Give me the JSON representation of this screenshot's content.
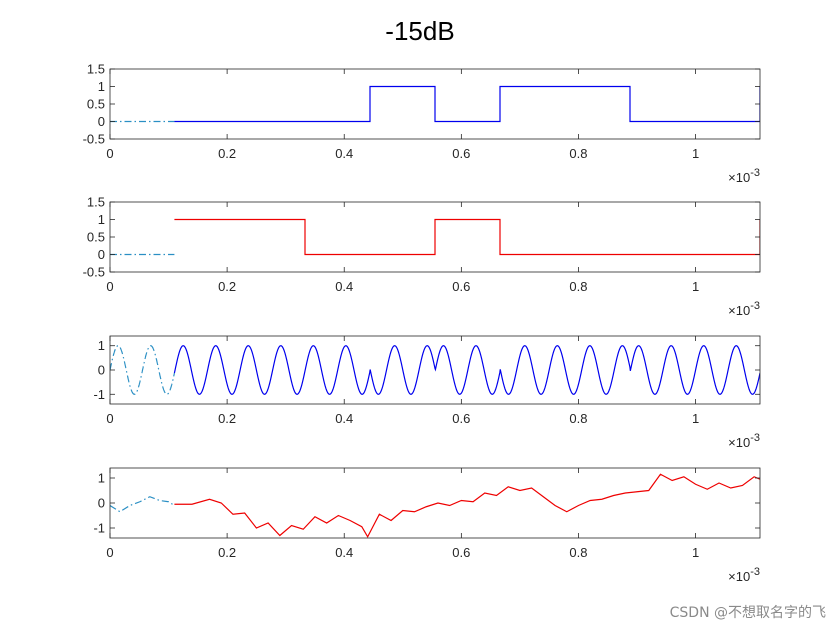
{
  "title": "-15dB",
  "watermark": "CSDN @不想取名字的飞",
  "colors": {
    "prefix": "#2a8fc4",
    "blue": "#0000ee",
    "red": "#ee0000",
    "axis": "#262626"
  },
  "chart_data": [
    {
      "type": "line",
      "subplot": 1,
      "xlim": [
        0,
        0.00111
      ],
      "ylim": [
        -0.5,
        1.5
      ],
      "xticks": [
        0,
        0.2,
        0.4,
        0.6,
        0.8,
        1
      ],
      "yticks": [
        -0.5,
        0,
        0.5,
        1,
        1.5
      ],
      "x_exponent": "×10-3",
      "series": [
        {
          "style": "dashdot",
          "color": "#2a8fc4",
          "x": [
            0,
            0.00011
          ],
          "y": [
            0,
            0
          ]
        },
        {
          "style": "solid",
          "color": "#0000ee",
          "x": [
            0.00011,
            0.000444,
            0.000444,
            0.000555,
            0.000555,
            0.000666,
            0.000666,
            0.000888,
            0.000888,
            0.00111,
            0.00111
          ],
          "y": [
            0,
            0,
            1,
            1,
            0,
            0,
            1,
            1,
            0,
            0,
            1
          ]
        }
      ]
    },
    {
      "type": "line",
      "subplot": 2,
      "xlim": [
        0,
        0.00111
      ],
      "ylim": [
        -0.5,
        1.5
      ],
      "xticks": [
        0,
        0.2,
        0.4,
        0.6,
        0.8,
        1
      ],
      "yticks": [
        -0.5,
        0,
        0.5,
        1,
        1.5
      ],
      "x_exponent": "×10-3",
      "series": [
        {
          "style": "dashdot",
          "color": "#2a8fc4",
          "x": [
            0,
            0.00011
          ],
          "y": [
            0,
            0
          ]
        },
        {
          "style": "solid",
          "color": "#ee0000",
          "x": [
            0.00011,
            0.000333,
            0.000333,
            0.000555,
            0.000555,
            0.000666,
            0.000666,
            0.00111,
            0.00111
          ],
          "y": [
            1,
            1,
            0,
            0,
            1,
            1,
            0,
            0,
            1
          ]
        }
      ]
    },
    {
      "type": "line",
      "subplot": 3,
      "xlim": [
        0,
        0.00111
      ],
      "ylim": [
        -1.4,
        1.4
      ],
      "xticks": [
        0,
        0.2,
        0.4,
        0.6,
        0.8,
        1
      ],
      "yticks": [
        -1,
        0,
        1
      ],
      "x_exponent": "×10-3",
      "series": [
        {
          "style": "dashdot",
          "color": "#2a8fc4",
          "x_start": 0,
          "x_end": 0.00011,
          "cycles_per_ms": 18,
          "amplitude": 1,
          "phase_flips": []
        },
        {
          "style": "solid",
          "color": "#0000ee",
          "x_start": 0.00011,
          "x_end": 0.00111,
          "cycles_per_ms": 18,
          "amplitude": 1,
          "phase_flips": [
            0.000444,
            0.000555,
            0.000666,
            0.000888
          ]
        }
      ]
    },
    {
      "type": "line",
      "subplot": 4,
      "xlim": [
        0,
        0.00111
      ],
      "ylim": [
        -1.4,
        1.4
      ],
      "xticks": [
        0,
        0.2,
        0.4,
        0.6,
        0.8,
        1
      ],
      "yticks": [
        -1,
        0,
        1
      ],
      "x_exponent": "×10-3",
      "series": [
        {
          "style": "dashdot",
          "color": "#2a8fc4",
          "x": [
            0,
            1.7e-05,
            3.4e-05,
            5.1e-05,
            6.8e-05,
            8.5e-05,
            0.0001,
            0.00011
          ],
          "y": [
            -0.1,
            -0.35,
            -0.1,
            0.05,
            0.25,
            0.1,
            0.05,
            -0.1
          ]
        },
        {
          "style": "solid",
          "color": "#ee0000",
          "x": [
            0.00011,
            0.00014,
            0.00017,
            0.00019,
            0.00021,
            0.00023,
            0.00025,
            0.00027,
            0.00029,
            0.00031,
            0.00033,
            0.00035,
            0.00037,
            0.00039,
            0.00041,
            0.00043,
            0.00044,
            0.00045,
            0.00046,
            0.00048,
            0.0005,
            0.00052,
            0.00054,
            0.00056,
            0.00058,
            0.0006,
            0.00062,
            0.00064,
            0.00066,
            0.00068,
            0.0007,
            0.00072,
            0.00074,
            0.00076,
            0.00078,
            0.0008,
            0.00082,
            0.00084,
            0.00086,
            0.00088,
            0.0009,
            0.00092,
            0.00094,
            0.00096,
            0.00098,
            0.001,
            0.00102,
            0.00104,
            0.00106,
            0.00108,
            0.0011,
            0.00111
          ],
          "y": [
            -0.05,
            -0.05,
            0.15,
            0.0,
            -0.45,
            -0.4,
            -1.0,
            -0.8,
            -1.3,
            -0.9,
            -1.05,
            -0.55,
            -0.8,
            -0.5,
            -0.7,
            -0.95,
            -1.35,
            -0.9,
            -0.45,
            -0.7,
            -0.3,
            -0.35,
            -0.15,
            0.0,
            -0.1,
            0.1,
            0.05,
            0.4,
            0.3,
            0.65,
            0.5,
            0.6,
            0.25,
            -0.1,
            -0.35,
            -0.1,
            0.1,
            0.15,
            0.3,
            0.4,
            0.45,
            0.5,
            1.15,
            0.9,
            1.05,
            0.75,
            0.55,
            0.8,
            0.6,
            0.7,
            1.05,
            0.95
          ]
        }
      ]
    }
  ]
}
